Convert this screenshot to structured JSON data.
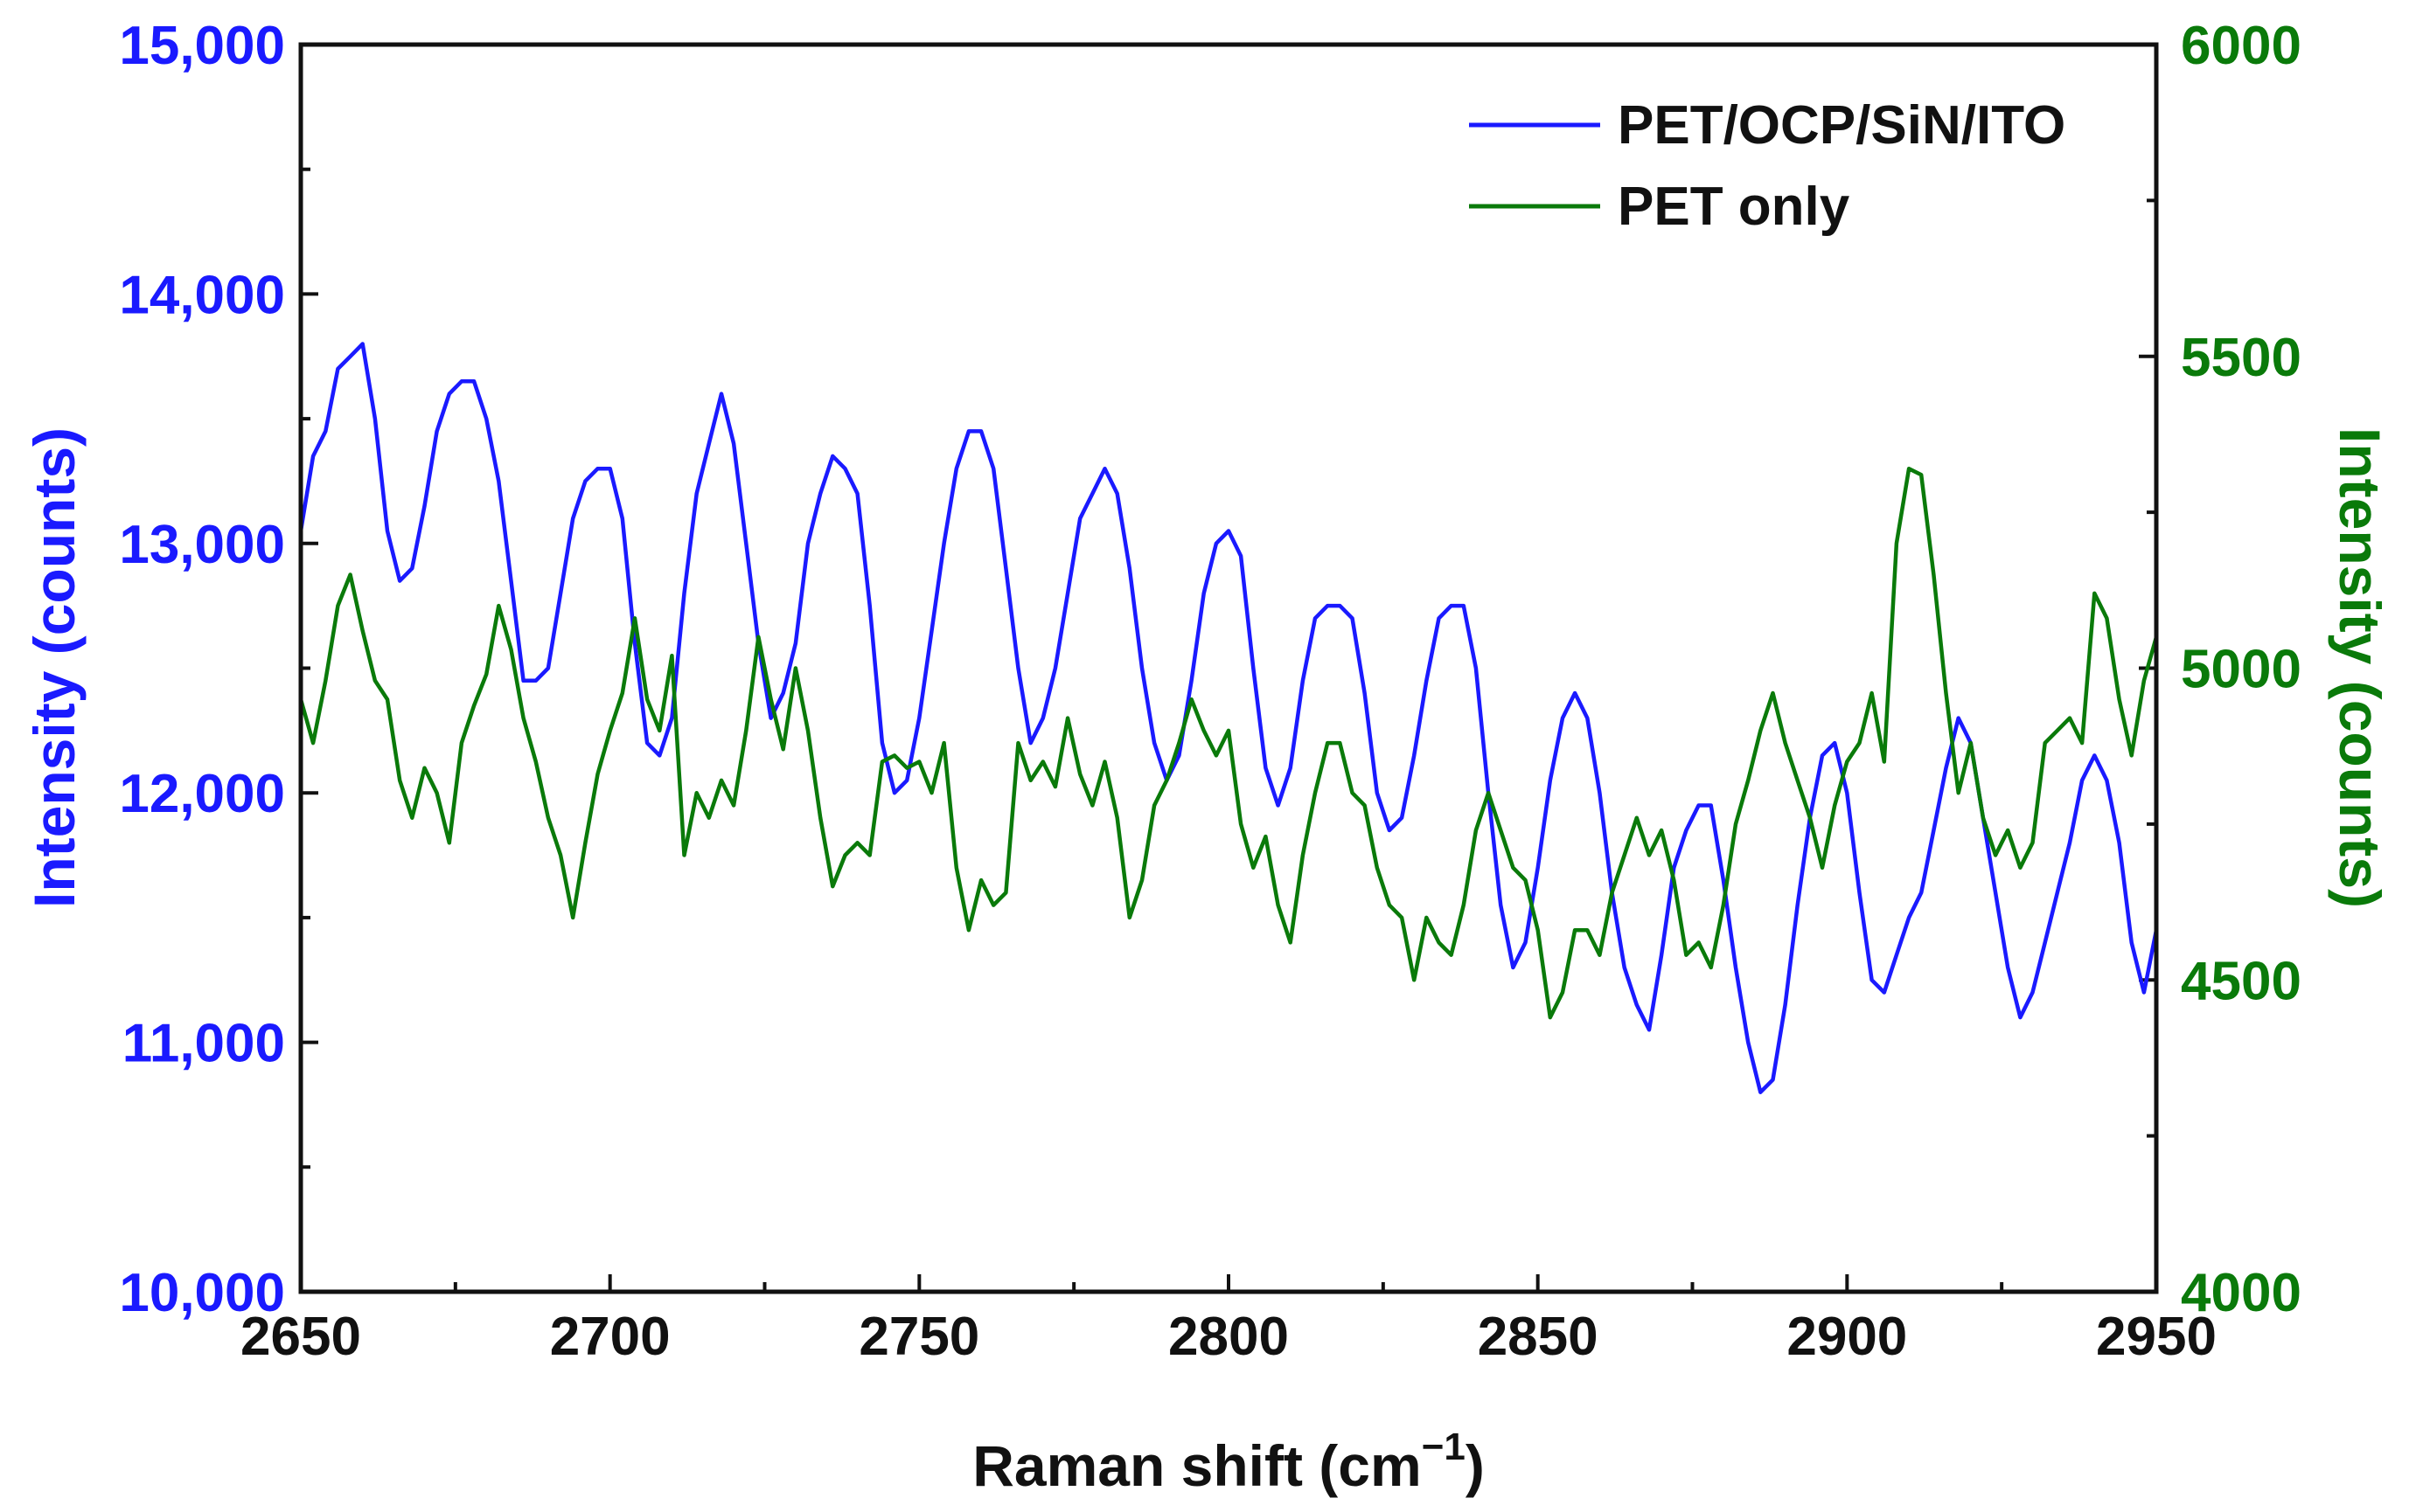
{
  "chart_data": {
    "type": "line",
    "xlabel": "Raman shift (cm",
    "xlabel_superscript": "−1",
    "xlabel_suffix": ")",
    "ylabel_left": "Intensity (counts)",
    "ylabel_right": "Intensity (counts)",
    "xlim": [
      2650,
      2950
    ],
    "ylim_left": [
      10000,
      15000
    ],
    "ylim_right": [
      4000,
      6000
    ],
    "x_ticks": [
      "2650",
      "2700",
      "2750",
      "2800",
      "2850",
      "2900",
      "2950"
    ],
    "y_ticks_left": [
      "10,000",
      "11,000",
      "12,000",
      "13,000",
      "14,000",
      "15,000"
    ],
    "y_ticks_right": [
      "4000",
      "4500",
      "5000",
      "5500",
      "6000"
    ],
    "legend_position": "top-right",
    "colors": {
      "blue": "#1a1aff",
      "green": "#0a7a0a",
      "axis": "#111111"
    },
    "series": [
      {
        "name": "PET/OCP/SiN/ITO",
        "axis": "left",
        "color": "#1a1aff",
        "x": [
          2650,
          2652,
          2654,
          2656,
          2658,
          2660,
          2662,
          2664,
          2666,
          2668,
          2670,
          2672,
          2674,
          2676,
          2678,
          2680,
          2682,
          2684,
          2686,
          2688,
          2690,
          2692,
          2694,
          2696,
          2698,
          2700,
          2702,
          2704,
          2706,
          2708,
          2710,
          2712,
          2714,
          2716,
          2718,
          2720,
          2722,
          2724,
          2726,
          2728,
          2730,
          2732,
          2734,
          2736,
          2738,
          2740,
          2742,
          2744,
          2746,
          2748,
          2750,
          2752,
          2754,
          2756,
          2758,
          2760,
          2762,
          2764,
          2766,
          2768,
          2770,
          2772,
          2774,
          2776,
          2778,
          2780,
          2782,
          2784,
          2786,
          2788,
          2790,
          2792,
          2794,
          2796,
          2798,
          2800,
          2802,
          2804,
          2806,
          2808,
          2810,
          2812,
          2814,
          2816,
          2818,
          2820,
          2822,
          2824,
          2826,
          2828,
          2830,
          2832,
          2834,
          2836,
          2838,
          2840,
          2842,
          2844,
          2846,
          2848,
          2850,
          2852,
          2854,
          2856,
          2858,
          2860,
          2862,
          2864,
          2866,
          2868,
          2870,
          2872,
          2874,
          2876,
          2878,
          2880,
          2882,
          2884,
          2886,
          2888,
          2890,
          2892,
          2894,
          2896,
          2898,
          2900,
          2902,
          2904,
          2906,
          2908,
          2910,
          2912,
          2914,
          2916,
          2918,
          2920,
          2922,
          2924,
          2926,
          2928,
          2930,
          2932,
          2934,
          2936,
          2938,
          2940,
          2942,
          2944,
          2946,
          2948,
          2950
        ],
        "values": [
          13050,
          13350,
          13450,
          13700,
          13750,
          13800,
          13500,
          13050,
          12850,
          12900,
          13150,
          13450,
          13600,
          13650,
          13650,
          13500,
          13250,
          12850,
          12450,
          12450,
          12500,
          12800,
          13100,
          13250,
          13300,
          13300,
          13100,
          12600,
          12200,
          12150,
          12300,
          12800,
          13200,
          13400,
          13600,
          13400,
          13000,
          12600,
          12300,
          12400,
          12600,
          13000,
          13200,
          13350,
          13300,
          13200,
          12750,
          12200,
          12000,
          12050,
          12300,
          12650,
          13000,
          13300,
          13450,
          13450,
          13300,
          12900,
          12500,
          12200,
          12300,
          12500,
          12800,
          13100,
          13200,
          13300,
          13200,
          12900,
          12500,
          12200,
          12050,
          12150,
          12450,
          12800,
          13000,
          13050,
          12950,
          12500,
          12100,
          11950,
          12100,
          12450,
          12700,
          12750,
          12750,
          12700,
          12400,
          12000,
          11850,
          11900,
          12150,
          12450,
          12700,
          12750,
          12750,
          12500,
          12000,
          11550,
          11300,
          11400,
          11700,
          12050,
          12300,
          12400,
          12300,
          12000,
          11600,
          11300,
          11150,
          11050,
          11350,
          11700,
          11850,
          11950,
          11950,
          11650,
          11300,
          11000,
          10800,
          10850,
          11150,
          11550,
          11900,
          12150,
          12200,
          12000,
          11600,
          11250,
          11200,
          11350,
          11500,
          11600,
          11850,
          12100,
          12300,
          12200,
          11900,
          11600,
          11300,
          11100,
          11200,
          11400,
          11600,
          11800,
          12050,
          12150,
          12050,
          11800,
          11400,
          11200,
          11450
        ]
      },
      {
        "name": "PET only",
        "axis": "right",
        "color": "#0a7a0a",
        "x": [
          2650,
          2652,
          2654,
          2656,
          2658,
          2660,
          2662,
          2664,
          2666,
          2668,
          2670,
          2672,
          2674,
          2676,
          2678,
          2680,
          2682,
          2684,
          2686,
          2688,
          2690,
          2692,
          2694,
          2696,
          2698,
          2700,
          2702,
          2704,
          2706,
          2708,
          2710,
          2712,
          2714,
          2716,
          2718,
          2720,
          2722,
          2724,
          2726,
          2728,
          2730,
          2732,
          2734,
          2736,
          2738,
          2740,
          2742,
          2744,
          2746,
          2748,
          2750,
          2752,
          2754,
          2756,
          2758,
          2760,
          2762,
          2764,
          2766,
          2768,
          2770,
          2772,
          2774,
          2776,
          2778,
          2780,
          2782,
          2784,
          2786,
          2788,
          2790,
          2792,
          2794,
          2796,
          2798,
          2800,
          2802,
          2804,
          2806,
          2808,
          2810,
          2812,
          2814,
          2816,
          2818,
          2820,
          2822,
          2824,
          2826,
          2828,
          2830,
          2832,
          2834,
          2836,
          2838,
          2840,
          2842,
          2844,
          2846,
          2848,
          2850,
          2852,
          2854,
          2856,
          2858,
          2860,
          2862,
          2864,
          2866,
          2868,
          2870,
          2872,
          2874,
          2876,
          2878,
          2880,
          2882,
          2884,
          2886,
          2888,
          2890,
          2892,
          2894,
          2896,
          2898,
          2900,
          2902,
          2904,
          2906,
          2908,
          2910,
          2912,
          2914,
          2916,
          2918,
          2920,
          2922,
          2924,
          2926,
          2928,
          2930,
          2932,
          2934,
          2936,
          2938,
          2940,
          2942,
          2944,
          2946,
          2948,
          2950
        ],
        "values": [
          4950,
          4880,
          4980,
          5100,
          5150,
          5060,
          4980,
          4950,
          4820,
          4760,
          4840,
          4800,
          4720,
          4880,
          4940,
          4990,
          5100,
          5030,
          4920,
          4850,
          4760,
          4700,
          4600,
          4720,
          4830,
          4900,
          4960,
          5080,
          4950,
          4900,
          5020,
          4700,
          4800,
          4760,
          4820,
          4780,
          4900,
          5050,
          4950,
          4870,
          5000,
          4900,
          4760,
          4650,
          4700,
          4720,
          4700,
          4850,
          4860,
          4840,
          4850,
          4800,
          4880,
          4680,
          4580,
          4660,
          4620,
          4640,
          4880,
          4820,
          4850,
          4810,
          4920,
          4830,
          4780,
          4850,
          4760,
          4600,
          4660,
          4780,
          4820,
          4880,
          4950,
          4900,
          4860,
          4900,
          4750,
          4680,
          4730,
          4620,
          4560,
          4700,
          4800,
          4880,
          4880,
          4800,
          4780,
          4680,
          4620,
          4600,
          4500,
          4600,
          4560,
          4540,
          4620,
          4740,
          4800,
          4740,
          4680,
          4660,
          4580,
          4440,
          4480,
          4580,
          4580,
          4540,
          4640,
          4700,
          4760,
          4700,
          4740,
          4660,
          4540,
          4560,
          4520,
          4620,
          4750,
          4820,
          4900,
          4960,
          4880,
          4820,
          4760,
          4680,
          4780,
          4850,
          4880,
          4960,
          4850,
          5200,
          5320,
          5310,
          5150,
          4960,
          4800,
          4880,
          4760,
          4700,
          4740,
          4680,
          4720,
          4880,
          4900,
          4920,
          4880,
          5120,
          5080,
          4950,
          4860,
          4980,
          5050
        ]
      }
    ]
  }
}
